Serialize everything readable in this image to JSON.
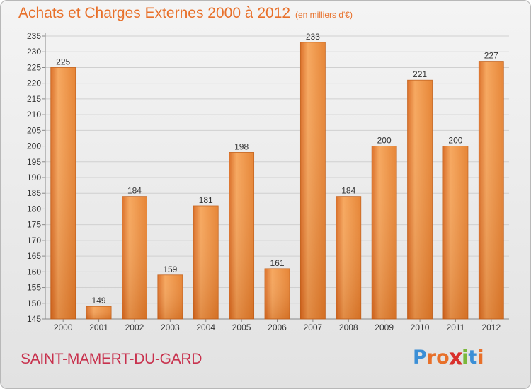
{
  "header": {
    "title": "Achats et Charges Externes 2000 à 2012",
    "subtitle": "(en milliers d'€)"
  },
  "footer": {
    "commune": "SAINT-MAMERT-DU-GARD",
    "logo_text": "Proxiti",
    "logo_colors": [
      "#3b8fd6",
      "#e8702a",
      "#e8702a",
      "#d9302c",
      "#7ab83a",
      "#3b8fd6",
      "#e8702a"
    ]
  },
  "chart_data": {
    "type": "bar",
    "categories": [
      "2000",
      "2001",
      "2002",
      "2003",
      "2004",
      "2005",
      "2006",
      "2007",
      "2008",
      "2009",
      "2010",
      "2011",
      "2012"
    ],
    "values": [
      225,
      149,
      184,
      159,
      181,
      198,
      161,
      233,
      184,
      200,
      221,
      200,
      227
    ],
    "ylim": [
      145,
      235
    ],
    "yticks": [
      145,
      150,
      155,
      160,
      165,
      170,
      175,
      180,
      185,
      190,
      195,
      200,
      205,
      210,
      215,
      220,
      225,
      230,
      235
    ],
    "grid": true,
    "bar_color": "#e8832f"
  }
}
